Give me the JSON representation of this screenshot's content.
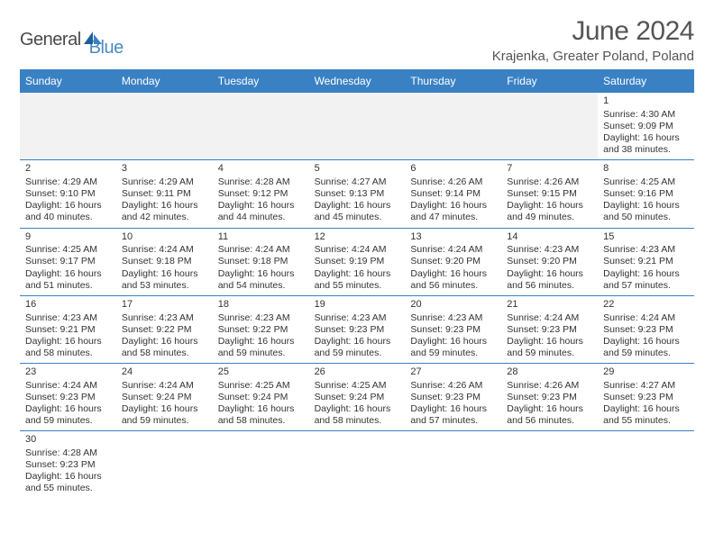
{
  "logo": {
    "text1": "General",
    "text2": "Blue"
  },
  "title": "June 2024",
  "location": "Krajenka, Greater Poland, Poland",
  "colors": {
    "headerBg": "#3a81c4",
    "headerText": "#ffffff",
    "blankBg": "#f2f2f2",
    "border": "#3a81c4",
    "bodyText": "#333333",
    "logoBlue": "#4a8bbf",
    "logoGray": "#4a4a4a"
  },
  "typography": {
    "titleSize": 30,
    "locationSize": 15,
    "headerSize": 12,
    "cellSize": 10.5,
    "logoSize": 20
  },
  "weekdays": [
    "Sunday",
    "Monday",
    "Tuesday",
    "Wednesday",
    "Thursday",
    "Friday",
    "Saturday"
  ],
  "firstDayColumn": 6,
  "days": [
    {
      "n": "1",
      "sunrise": "4:30 AM",
      "sunset": "9:09 PM",
      "dh": "16",
      "dm": "38"
    },
    {
      "n": "2",
      "sunrise": "4:29 AM",
      "sunset": "9:10 PM",
      "dh": "16",
      "dm": "40"
    },
    {
      "n": "3",
      "sunrise": "4:29 AM",
      "sunset": "9:11 PM",
      "dh": "16",
      "dm": "42"
    },
    {
      "n": "4",
      "sunrise": "4:28 AM",
      "sunset": "9:12 PM",
      "dh": "16",
      "dm": "44"
    },
    {
      "n": "5",
      "sunrise": "4:27 AM",
      "sunset": "9:13 PM",
      "dh": "16",
      "dm": "45"
    },
    {
      "n": "6",
      "sunrise": "4:26 AM",
      "sunset": "9:14 PM",
      "dh": "16",
      "dm": "47"
    },
    {
      "n": "7",
      "sunrise": "4:26 AM",
      "sunset": "9:15 PM",
      "dh": "16",
      "dm": "49"
    },
    {
      "n": "8",
      "sunrise": "4:25 AM",
      "sunset": "9:16 PM",
      "dh": "16",
      "dm": "50"
    },
    {
      "n": "9",
      "sunrise": "4:25 AM",
      "sunset": "9:17 PM",
      "dh": "16",
      "dm": "51"
    },
    {
      "n": "10",
      "sunrise": "4:24 AM",
      "sunset": "9:18 PM",
      "dh": "16",
      "dm": "53"
    },
    {
      "n": "11",
      "sunrise": "4:24 AM",
      "sunset": "9:18 PM",
      "dh": "16",
      "dm": "54"
    },
    {
      "n": "12",
      "sunrise": "4:24 AM",
      "sunset": "9:19 PM",
      "dh": "16",
      "dm": "55"
    },
    {
      "n": "13",
      "sunrise": "4:24 AM",
      "sunset": "9:20 PM",
      "dh": "16",
      "dm": "56"
    },
    {
      "n": "14",
      "sunrise": "4:23 AM",
      "sunset": "9:20 PM",
      "dh": "16",
      "dm": "56"
    },
    {
      "n": "15",
      "sunrise": "4:23 AM",
      "sunset": "9:21 PM",
      "dh": "16",
      "dm": "57"
    },
    {
      "n": "16",
      "sunrise": "4:23 AM",
      "sunset": "9:21 PM",
      "dh": "16",
      "dm": "58"
    },
    {
      "n": "17",
      "sunrise": "4:23 AM",
      "sunset": "9:22 PM",
      "dh": "16",
      "dm": "58"
    },
    {
      "n": "18",
      "sunrise": "4:23 AM",
      "sunset": "9:22 PM",
      "dh": "16",
      "dm": "59"
    },
    {
      "n": "19",
      "sunrise": "4:23 AM",
      "sunset": "9:23 PM",
      "dh": "16",
      "dm": "59"
    },
    {
      "n": "20",
      "sunrise": "4:23 AM",
      "sunset": "9:23 PM",
      "dh": "16",
      "dm": "59"
    },
    {
      "n": "21",
      "sunrise": "4:24 AM",
      "sunset": "9:23 PM",
      "dh": "16",
      "dm": "59"
    },
    {
      "n": "22",
      "sunrise": "4:24 AM",
      "sunset": "9:23 PM",
      "dh": "16",
      "dm": "59"
    },
    {
      "n": "23",
      "sunrise": "4:24 AM",
      "sunset": "9:23 PM",
      "dh": "16",
      "dm": "59"
    },
    {
      "n": "24",
      "sunrise": "4:24 AM",
      "sunset": "9:24 PM",
      "dh": "16",
      "dm": "59"
    },
    {
      "n": "25",
      "sunrise": "4:25 AM",
      "sunset": "9:24 PM",
      "dh": "16",
      "dm": "58"
    },
    {
      "n": "26",
      "sunrise": "4:25 AM",
      "sunset": "9:24 PM",
      "dh": "16",
      "dm": "58"
    },
    {
      "n": "27",
      "sunrise": "4:26 AM",
      "sunset": "9:23 PM",
      "dh": "16",
      "dm": "57"
    },
    {
      "n": "28",
      "sunrise": "4:26 AM",
      "sunset": "9:23 PM",
      "dh": "16",
      "dm": "56"
    },
    {
      "n": "29",
      "sunrise": "4:27 AM",
      "sunset": "9:23 PM",
      "dh": "16",
      "dm": "55"
    },
    {
      "n": "30",
      "sunrise": "4:28 AM",
      "sunset": "9:23 PM",
      "dh": "16",
      "dm": "55"
    }
  ],
  "labels": {
    "sunrise": "Sunrise:",
    "sunset": "Sunset:",
    "daylight1": "Daylight:",
    "hoursWord": "hours",
    "andWord": "and",
    "minutesWord": "minutes."
  }
}
